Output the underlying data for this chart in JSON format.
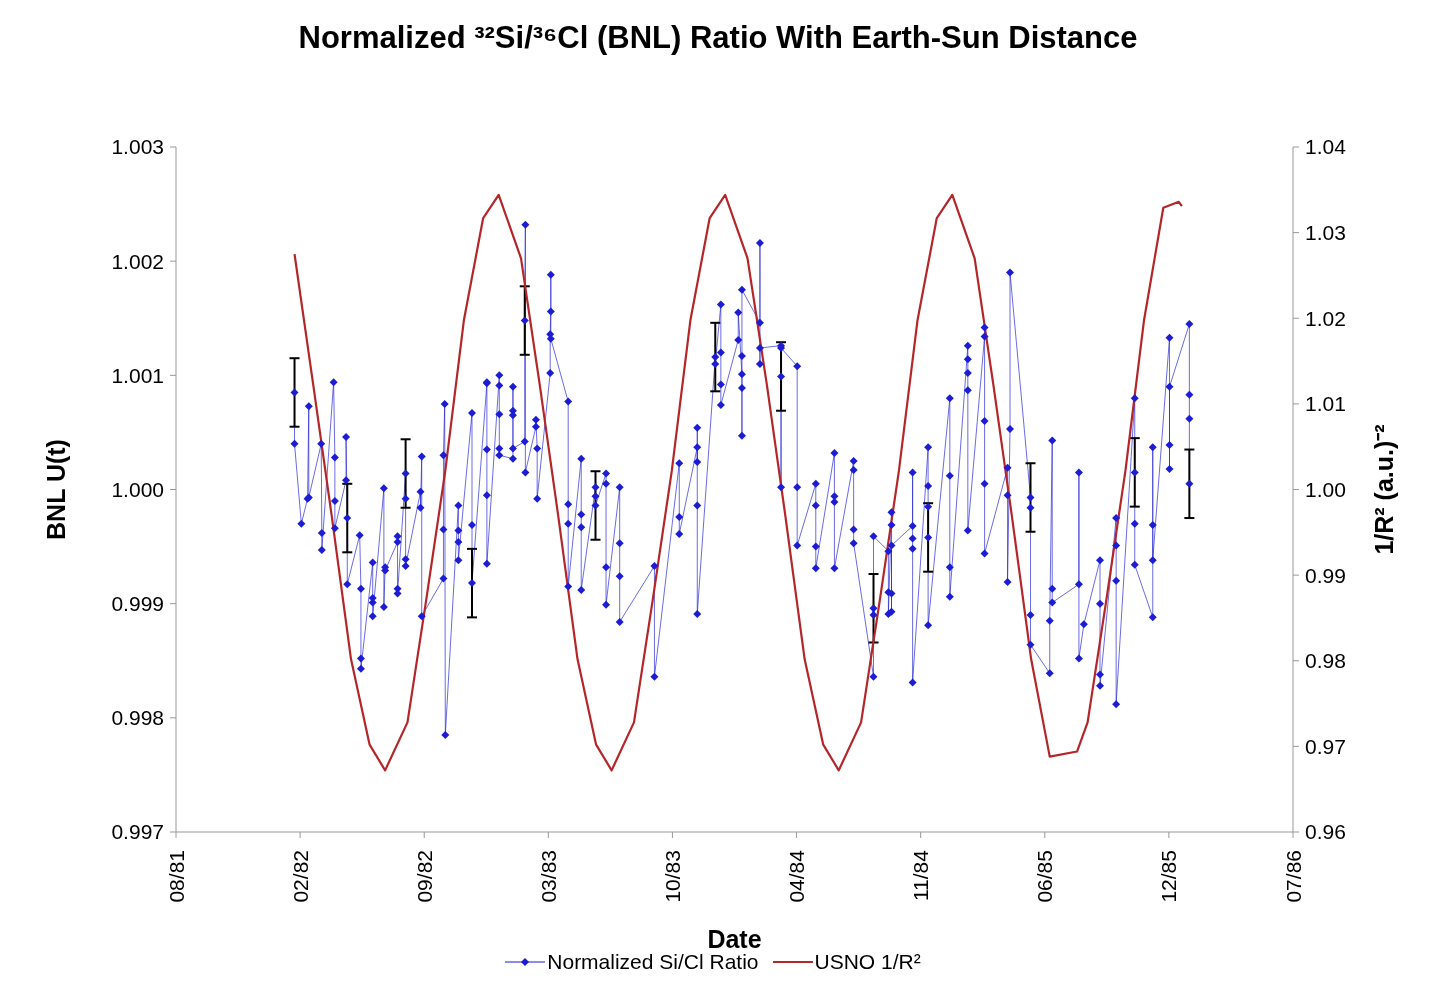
{
  "chart_data": {
    "type": "line",
    "title": "Normalized ³²Si/³⁶Cl (BNL) Ratio With Earth-Sun Distance",
    "xlabel": "Date",
    "ylabel": "BNL U(t)",
    "y2label": "1/R² (a.u.)⁻²",
    "xlim": [
      "1981-08-01",
      "1986-07-06"
    ],
    "xticks": [
      {
        "value": "1981-08-01",
        "label": "08/81"
      },
      {
        "value": "1982-02-17",
        "label": "02/82"
      },
      {
        "value": "1982-09-05",
        "label": "09/82"
      },
      {
        "value": "1983-03-24",
        "label": "03/83"
      },
      {
        "value": "1983-10-10",
        "label": "10/83"
      },
      {
        "value": "1984-04-27",
        "label": "04/84"
      },
      {
        "value": "1984-11-13",
        "label": "11/84"
      },
      {
        "value": "1985-06-01",
        "label": "06/85"
      },
      {
        "value": "1985-12-18",
        "label": "12/85"
      },
      {
        "value": "1986-07-06",
        "label": "07/86"
      }
    ],
    "ylim": [
      0.997,
      1.003
    ],
    "yticks": [
      0.997,
      0.998,
      0.999,
      {
        "value": 1,
        "label": "1.000"
      },
      1.001,
      1.002,
      1.003
    ],
    "y2lim": [
      0.96,
      1.04
    ],
    "y2ticks": [
      0.96,
      0.97,
      0.98,
      0.99,
      {
        "value": 1,
        "label": "1.00"
      },
      1.01,
      1.02,
      1.03,
      1.04
    ],
    "grid": false,
    "legend": "bottom",
    "series": [
      {
        "name": "Normalized Si/Cl Ratio",
        "color": "#1c1cd4",
        "marker": "diamond",
        "x": [
          "1982-02-08",
          "1982-02-08",
          "1982-02-19",
          "1982-03-01",
          "1982-03-03",
          "1982-03-03",
          "1982-03-23",
          "1982-03-24",
          "1982-03-24",
          "1982-04-12",
          "1982-04-14",
          "1982-04-14",
          "1982-04-14",
          "1982-05-02",
          "1982-05-02",
          "1982-05-04",
          "1982-05-04",
          "1982-05-24",
          "1982-05-26",
          "1982-05-26",
          "1982-05-26",
          "1982-06-14",
          "1982-06-14",
          "1982-06-14",
          "1982-06-14",
          "1982-07-02",
          "1982-07-02",
          "1982-07-04",
          "1982-07-04",
          "1982-07-24",
          "1982-07-24",
          "1982-07-24",
          "1982-07-24",
          "1982-08-06",
          "1982-08-06",
          "1982-08-06",
          "1982-08-06",
          "1982-08-30",
          "1982-08-30",
          "1982-09-01",
          "1982-09-01",
          "1982-10-06",
          "1982-10-06",
          "1982-10-06",
          "1982-10-08",
          "1982-10-09",
          "1982-10-30",
          "1982-10-30",
          "1982-10-30",
          "1982-10-30",
          "1982-11-21",
          "1982-11-21",
          "1982-11-21",
          "1982-12-15",
          "1982-12-15",
          "1982-12-15",
          "1982-12-15",
          "1982-12-15",
          "1983-01-04",
          "1983-01-04",
          "1983-01-04",
          "1983-01-04",
          "1983-01-04",
          "1983-01-26",
          "1983-01-26",
          "1983-01-26",
          "1983-01-26",
          "1983-01-26",
          "1983-02-14",
          "1983-02-14",
          "1983-02-15",
          "1983-02-15",
          "1983-03-04",
          "1983-03-04",
          "1983-03-06",
          "1983-03-06",
          "1983-03-27",
          "1983-03-27",
          "1983-03-28",
          "1983-03-28",
          "1983-03-28",
          "1983-04-25",
          "1983-04-25",
          "1983-04-25",
          "1983-04-25",
          "1983-05-16",
          "1983-05-16",
          "1983-05-16",
          "1983-05-16",
          "1983-06-08",
          "1983-06-08",
          "1983-06-08",
          "1983-06-25",
          "1983-06-25",
          "1983-06-25",
          "1983-06-25",
          "1983-07-17",
          "1983-07-17",
          "1983-07-17",
          "1983-07-17",
          "1983-09-11",
          "1983-09-11",
          "1983-10-21",
          "1983-10-21",
          "1983-10-21",
          "1983-11-19",
          "1983-11-19",
          "1983-11-19",
          "1983-11-19",
          "1983-11-19",
          "1983-12-18",
          "1983-12-18",
          "1983-12-27",
          "1983-12-27",
          "1983-12-27",
          "1983-12-27",
          "1984-01-24",
          "1984-01-24",
          "1984-01-30",
          "1984-01-30",
          "1984-01-30",
          "1984-01-30",
          "1984-01-30",
          "1984-02-28",
          "1984-02-28",
          "1984-02-28",
          "1984-02-28",
          "1984-04-02",
          "1984-04-02",
          "1984-04-02",
          "1984-04-02",
          "1984-04-28",
          "1984-04-28",
          "1984-04-28",
          "1984-05-28",
          "1984-05-28",
          "1984-05-28",
          "1984-05-28",
          "1984-06-27",
          "1984-06-27",
          "1984-06-27",
          "1984-06-27",
          "1984-07-28",
          "1984-07-28",
          "1984-07-28",
          "1984-07-28",
          "1984-08-29",
          "1984-08-29",
          "1984-08-29",
          "1984-08-29",
          "1984-09-22",
          "1984-09-22",
          "1984-09-22",
          "1984-09-27",
          "1984-09-27",
          "1984-09-27",
          "1984-09-27",
          "1984-09-27",
          "1984-10-31",
          "1984-10-31",
          "1984-10-31",
          "1984-10-31",
          "1984-10-31",
          "1984-11-25",
          "1984-11-25",
          "1984-11-25",
          "1984-11-25",
          "1984-11-25",
          "1984-12-30",
          "1984-12-30",
          "1984-12-30",
          "1984-12-30",
          "1985-01-28",
          "1985-01-28",
          "1985-01-28",
          "1985-01-28",
          "1985-01-28",
          "1985-02-24",
          "1985-02-24",
          "1985-02-24",
          "1985-02-24",
          "1985-02-24",
          "1985-04-02",
          "1985-04-02",
          "1985-04-02",
          "1985-04-06",
          "1985-04-06",
          "1985-05-09",
          "1985-05-09",
          "1985-05-09",
          "1985-05-09",
          "1985-06-09",
          "1985-06-09",
          "1985-06-13",
          "1985-06-13",
          "1985-06-13",
          "1985-07-26",
          "1985-07-26",
          "1985-07-26",
          "1985-08-03",
          "1985-08-29",
          "1985-08-29",
          "1985-08-29",
          "1985-08-29",
          "1985-09-24",
          "1985-09-24",
          "1985-09-24",
          "1985-09-24",
          "1985-10-24",
          "1985-10-24",
          "1985-10-24",
          "1985-10-24",
          "1985-11-22",
          "1985-11-22",
          "1985-11-22",
          "1985-11-22",
          "1985-12-19",
          "1985-12-19",
          "1985-12-19",
          "1985-12-19",
          "1986-01-20",
          "1986-01-20",
          "1986-01-20",
          "1986-01-20"
        ],
        "values": [
          1.00085,
          1.0004,
          0.9997,
          0.99992,
          1.00073,
          0.99993,
          1.0004,
          0.99962,
          0.99947,
          1.00094,
          1.00028,
          0.9999,
          0.99966,
          1.00008,
          1.00046,
          0.99975,
          0.99917,
          0.9996,
          0.99913,
          0.99852,
          0.99843,
          0.99936,
          0.99905,
          0.99901,
          0.99889,
          1.00001,
          0.99897,
          0.99932,
          0.99929,
          0.99954,
          0.99959,
          0.99913,
          0.99909,
          1.00014,
          0.99992,
          0.99939,
          0.99933,
          0.99998,
          0.99984,
          1.00029,
          0.99889,
          0.99922,
          0.99965,
          1.0003,
          1.00075,
          0.99785,
          0.99986,
          0.99964,
          0.99954,
          0.99938,
          1.00067,
          0.99969,
          0.99918,
          1.00093,
          1.00094,
          1.00035,
          0.99995,
          0.99935,
          1.001,
          1.00091,
          1.00066,
          1.00036,
          1.0003,
          1.00027,
          1.0009,
          1.00069,
          1.00065,
          1.00036,
          1.00042,
          1.00148,
          1.00232,
          1.00015,
          1.00055,
          1.00061,
          1.00036,
          0.99992,
          1.00102,
          1.00136,
          1.00156,
          1.00188,
          1.00132,
          1.00077,
          0.99987,
          0.9997,
          0.99915,
          1.00027,
          0.99978,
          0.99967,
          0.99912,
          1.00002,
          0.99994,
          0.99986,
          1.00014,
          1.00005,
          0.99932,
          0.99899,
          1.00002,
          0.99953,
          0.99924,
          0.99884,
          0.99933,
          0.99836,
          1.00023,
          0.99976,
          0.99961,
          1.00037,
          1.00024,
          1.00054,
          0.99986,
          0.99891,
          1.00116,
          1.0011,
          1.00162,
          1.0012,
          1.00092,
          1.00074,
          1.00131,
          1.00155,
          1.00101,
          1.00089,
          1.00047,
          1.00117,
          1.00175,
          1.00146,
          1.00216,
          1.0011,
          1.00124,
          1.00126,
          1.00099,
          1.00002,
          1.00124,
          1.00108,
          1.00002,
          0.99951,
          1.00005,
          0.99986,
          0.9995,
          0.99931,
          1.00032,
          0.99994,
          0.99989,
          0.99931,
          1.00025,
          1.00017,
          0.99965,
          0.99953,
          0.99836,
          0.99896,
          0.9989,
          0.99959,
          0.99946,
          0.9991,
          0.99891,
          0.9998,
          0.99969,
          0.99909,
          0.99893,
          0.99951,
          0.99968,
          1.00015,
          0.99957,
          0.99948,
          0.99831,
          1.00037,
          1.00003,
          0.99985,
          0.99958,
          0.99881,
          1.0008,
          1.00012,
          0.99932,
          0.99906,
          1.00126,
          1.00114,
          1.00102,
          1.00087,
          0.99964,
          1.00134,
          1.00142,
          1.0006,
          1.00005,
          0.99944,
          1.00019,
          0.99995,
          0.99919,
          1.00053,
          1.0019,
          0.99993,
          0.99984,
          0.9989,
          0.99864,
          0.99839,
          0.99885,
          1.00043,
          0.99913,
          0.99901,
          0.99917,
          1.00015,
          0.99852,
          0.99882,
          0.99938,
          0.999,
          0.99838,
          0.99828,
          0.99975,
          0.99951,
          0.9992,
          0.99812,
          1.0008,
          1.00015,
          0.9997,
          0.99934,
          0.99888,
          1.00037,
          0.99969,
          0.99938,
          1.00133,
          1.00039,
          1.00018,
          1.0009,
          1.00145,
          1.00083,
          1.00062,
          1.00005
        ],
        "errors": [
          0.0003,
          null,
          null,
          null,
          null,
          null,
          null,
          null,
          null,
          null,
          null,
          null,
          null,
          null,
          null,
          0.0003,
          null,
          null,
          null,
          null,
          null,
          null,
          null,
          null,
          null,
          null,
          null,
          null,
          null,
          null,
          null,
          null,
          null,
          0.0003,
          null,
          null,
          null,
          null,
          null,
          null,
          null,
          null,
          null,
          null,
          null,
          null,
          null,
          null,
          null,
          null,
          null,
          null,
          0.0003,
          null,
          null,
          null,
          null,
          null,
          null,
          null,
          null,
          null,
          null,
          null,
          null,
          null,
          null,
          null,
          null,
          0.0003,
          null,
          null,
          null,
          null,
          null,
          null,
          null,
          null,
          null,
          null,
          null,
          null,
          null,
          null,
          null,
          null,
          null,
          null,
          null,
          null,
          null,
          0.0003,
          null,
          null,
          null,
          null,
          null,
          null,
          null,
          null,
          null,
          null,
          null,
          null,
          null,
          null,
          null,
          null,
          null,
          null,
          0.0003,
          null,
          null,
          null,
          null,
          null,
          null,
          null,
          null,
          null,
          null,
          null,
          null,
          null,
          null,
          null,
          null,
          null,
          0.0003,
          null,
          null,
          null,
          null,
          null,
          null,
          null,
          null,
          null,
          null,
          null,
          null,
          null,
          null,
          null,
          null,
          null,
          null,
          0.0003,
          null,
          null,
          null,
          null,
          null,
          null,
          null,
          null,
          null,
          null,
          null,
          null,
          null,
          null,
          null,
          null,
          null,
          null,
          0.0003,
          null,
          null,
          null,
          null,
          null,
          null,
          null,
          null,
          null,
          null,
          null,
          null,
          null,
          null,
          null,
          null,
          null,
          null,
          null,
          null,
          0.0003,
          null,
          null,
          null,
          null,
          null,
          null,
          null,
          null,
          null,
          null,
          null,
          null,
          null,
          null,
          null,
          null,
          null,
          null,
          null,
          null,
          null,
          0.0003,
          null,
          null,
          null,
          null,
          null,
          null,
          null,
          null,
          null,
          null,
          null,
          null,
          null,
          0.0003
        ]
      },
      {
        "name": "USNO 1/R²",
        "color": "#b3262a",
        "marker": "none",
        "axis": "y2",
        "x": [
          "1982-02-08",
          "1982-03-10",
          "1982-04-09",
          "1982-05-10",
          "1982-06-09",
          "1982-07-04",
          "1982-08-09",
          "1982-09-08",
          "1982-10-09",
          "1982-11-08",
          "1982-12-09",
          "1983-01-03",
          "1983-02-08",
          "1983-03-10",
          "1983-04-09",
          "1983-05-10",
          "1983-06-09",
          "1983-07-04",
          "1983-08-09",
          "1983-09-08",
          "1983-10-09",
          "1983-11-08",
          "1983-12-09",
          "1984-01-03",
          "1984-02-08",
          "1984-03-10",
          "1984-04-09",
          "1984-05-10",
          "1984-06-09",
          "1984-07-04",
          "1984-08-09",
          "1984-09-08",
          "1984-10-09",
          "1984-11-08",
          "1984-12-09",
          "1985-01-03",
          "1985-02-08",
          "1985-03-10",
          "1985-04-09",
          "1985-05-10",
          "1985-06-09",
          "1985-07-23",
          "1985-08-09",
          "1985-09-08",
          "1985-10-09",
          "1985-11-08",
          "1985-12-09",
          "1986-01-03",
          "1986-01-08"
        ],
        "values": [
          1.0275,
          1.0123,
          0.9969,
          0.9802,
          0.9702,
          0.9672,
          0.9728,
          0.987,
          1.0022,
          1.0198,
          1.0317,
          1.0344,
          1.027,
          1.0123,
          0.9969,
          0.9802,
          0.9702,
          0.9672,
          0.9728,
          0.987,
          1.0022,
          1.0198,
          1.0317,
          1.0344,
          1.027,
          1.0123,
          0.9969,
          0.9802,
          0.9702,
          0.9672,
          0.9728,
          0.987,
          1.0022,
          1.0198,
          1.0317,
          1.0344,
          1.027,
          1.0123,
          0.9969,
          0.9802,
          0.9688,
          0.9694,
          0.9728,
          0.987,
          1.0022,
          1.0198,
          1.0329,
          1.0336,
          1.0331
        ]
      }
    ]
  }
}
